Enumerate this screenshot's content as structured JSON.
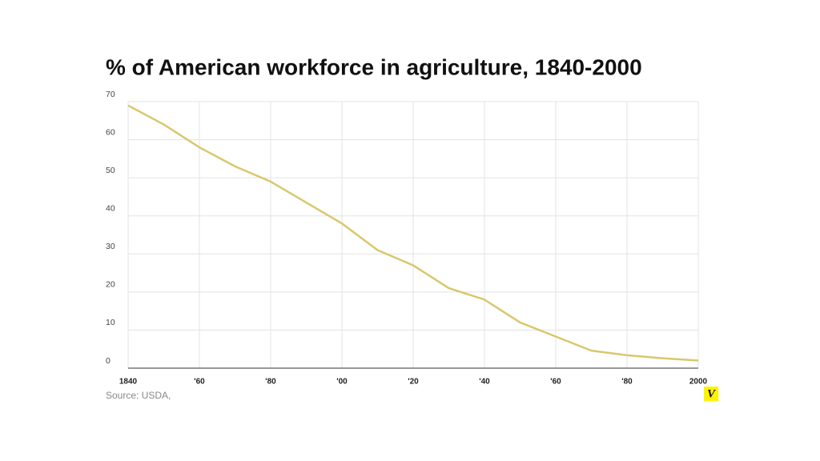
{
  "chart_data": {
    "type": "line",
    "title": "% of American workforce in agriculture, 1840-2000",
    "source": "Source: USDA,",
    "logo": "V",
    "x": [
      1840,
      1850,
      1860,
      1870,
      1880,
      1890,
      1900,
      1910,
      1920,
      1930,
      1940,
      1950,
      1960,
      1970,
      1980,
      1990,
      2000
    ],
    "values": [
      69,
      64,
      58,
      53,
      49,
      43.5,
      38,
      31,
      27,
      21,
      18,
      12,
      8.3,
      4.6,
      3.4,
      2.6,
      2
    ],
    "color": "#d9c76c",
    "xlim": [
      1840,
      2000
    ],
    "xticks": [
      1840,
      {
        "value": 1860,
        "label": "'60"
      },
      {
        "value": 1880,
        "label": "'80"
      },
      {
        "value": 1900,
        "label": "'00"
      },
      {
        "value": 1920,
        "label": "'20"
      },
      {
        "value": 1940,
        "label": "'40"
      },
      {
        "value": 1960,
        "label": "'60"
      },
      {
        "value": 1980,
        "label": "'80"
      },
      2000
    ],
    "ylim": [
      0,
      70
    ],
    "yticks": [
      0,
      10,
      20,
      30,
      40,
      50,
      60,
      70
    ],
    "grid": true
  }
}
